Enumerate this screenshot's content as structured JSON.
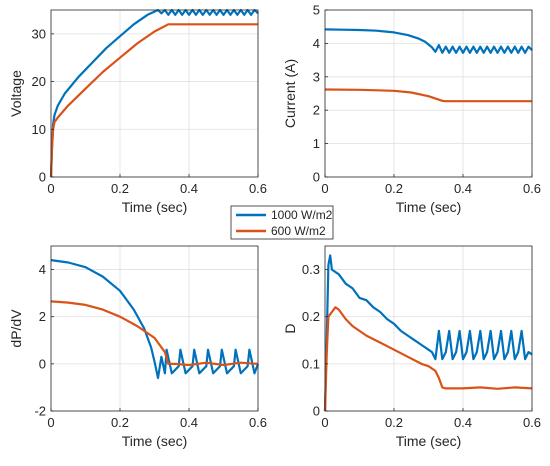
{
  "chart_data": [
    {
      "type": "line",
      "xlabel": "Time (sec)",
      "ylabel": "Voltage",
      "xlim": [
        0,
        0.6
      ],
      "ylim": [
        0,
        35
      ],
      "xticks": [
        {
          "v": 0,
          "label": "0"
        },
        {
          "v": 0.2,
          "label": "0.2"
        },
        {
          "v": 0.4,
          "label": "0.4"
        },
        {
          "v": 0.6,
          "label": "0.6"
        }
      ],
      "yticks": [
        {
          "v": 0,
          "label": "0"
        },
        {
          "v": 10,
          "label": "10"
        },
        {
          "v": 20,
          "label": "20"
        },
        {
          "v": 30,
          "label": "30"
        }
      ],
      "grid": true,
      "series": [
        {
          "name": "1000 W/m2",
          "x": [
            0,
            0.003,
            0.006,
            0.01,
            0.02,
            0.04,
            0.08,
            0.12,
            0.16,
            0.2,
            0.24,
            0.28,
            0.31,
            0.32,
            0.33,
            0.34,
            0.35,
            0.36,
            0.37,
            0.38,
            0.39,
            0.4,
            0.41,
            0.42,
            0.43,
            0.44,
            0.45,
            0.46,
            0.47,
            0.48,
            0.49,
            0.5,
            0.51,
            0.52,
            0.53,
            0.54,
            0.55,
            0.56,
            0.57,
            0.58,
            0.59,
            0.6
          ],
          "y": [
            0,
            6,
            11,
            13,
            15,
            17.5,
            21,
            24,
            27,
            29.5,
            32,
            34,
            35,
            34.3,
            35,
            34,
            35,
            34,
            35,
            34,
            35,
            34,
            35,
            34,
            35,
            34,
            35,
            34,
            35,
            34,
            35,
            34,
            35,
            34,
            35,
            34,
            35,
            34,
            35,
            34,
            35,
            34.3
          ]
        },
        {
          "name": "600 W/m2",
          "x": [
            0,
            0.003,
            0.006,
            0.01,
            0.02,
            0.05,
            0.1,
            0.15,
            0.2,
            0.25,
            0.3,
            0.34,
            0.35,
            0.4,
            0.5,
            0.6
          ],
          "y": [
            0,
            6,
            10,
            11.5,
            12.5,
            15,
            18.5,
            22,
            25,
            28,
            30.5,
            32,
            32,
            32,
            32,
            32
          ]
        }
      ]
    },
    {
      "type": "line",
      "xlabel": "Time (sec)",
      "ylabel": "Current (A)",
      "xlim": [
        0,
        0.6
      ],
      "ylim": [
        0,
        5
      ],
      "xticks": [
        {
          "v": 0,
          "label": "0"
        },
        {
          "v": 0.2,
          "label": "0.2"
        },
        {
          "v": 0.4,
          "label": "0.4"
        },
        {
          "v": 0.6,
          "label": "0.6"
        }
      ],
      "yticks": [
        {
          "v": 0,
          "label": "0"
        },
        {
          "v": 1,
          "label": "1"
        },
        {
          "v": 2,
          "label": "2"
        },
        {
          "v": 3,
          "label": "3"
        },
        {
          "v": 4,
          "label": "4"
        },
        {
          "v": 5,
          "label": "5"
        }
      ],
      "grid": true,
      "series": [
        {
          "name": "1000 W/m2",
          "x": [
            0,
            0.05,
            0.1,
            0.15,
            0.2,
            0.24,
            0.27,
            0.29,
            0.31,
            0.32,
            0.33,
            0.34,
            0.35,
            0.36,
            0.37,
            0.38,
            0.39,
            0.4,
            0.41,
            0.42,
            0.43,
            0.44,
            0.45,
            0.46,
            0.47,
            0.48,
            0.49,
            0.5,
            0.51,
            0.52,
            0.53,
            0.54,
            0.55,
            0.56,
            0.57,
            0.58,
            0.59,
            0.6
          ],
          "y": [
            4.42,
            4.41,
            4.4,
            4.38,
            4.33,
            4.25,
            4.15,
            4.05,
            3.88,
            3.75,
            3.95,
            3.72,
            3.9,
            3.72,
            3.9,
            3.72,
            3.9,
            3.72,
            3.9,
            3.72,
            3.9,
            3.72,
            3.9,
            3.72,
            3.9,
            3.72,
            3.9,
            3.72,
            3.9,
            3.72,
            3.9,
            3.72,
            3.9,
            3.72,
            3.9,
            3.72,
            3.9,
            3.8
          ]
        },
        {
          "name": "600 W/m2",
          "x": [
            0,
            0.1,
            0.2,
            0.25,
            0.3,
            0.34,
            0.35,
            0.4,
            0.5,
            0.6
          ],
          "y": [
            2.62,
            2.61,
            2.58,
            2.53,
            2.42,
            2.28,
            2.27,
            2.27,
            2.27,
            2.27
          ]
        }
      ]
    },
    {
      "type": "line",
      "xlabel": "Time (sec)",
      "ylabel": "dP/dV",
      "xlim": [
        0,
        0.6
      ],
      "ylim": [
        -2,
        5
      ],
      "xticks": [
        {
          "v": 0,
          "label": "0"
        },
        {
          "v": 0.2,
          "label": "0.2"
        },
        {
          "v": 0.4,
          "label": "0.4"
        },
        {
          "v": 0.6,
          "label": "0.6"
        }
      ],
      "yticks": [
        {
          "v": -2,
          "label": "-2"
        },
        {
          "v": 0,
          "label": "0"
        },
        {
          "v": 2,
          "label": "2"
        },
        {
          "v": 4,
          "label": "4"
        }
      ],
      "grid": true,
      "series": [
        {
          "name": "1000 W/m2",
          "x": [
            0,
            0.05,
            0.1,
            0.15,
            0.2,
            0.24,
            0.27,
            0.29,
            0.3,
            0.31,
            0.32,
            0.33,
            0.335,
            0.35,
            0.37,
            0.375,
            0.39,
            0.41,
            0.415,
            0.43,
            0.45,
            0.455,
            0.47,
            0.49,
            0.495,
            0.51,
            0.53,
            0.535,
            0.55,
            0.57,
            0.575,
            0.59,
            0.6
          ],
          "y": [
            4.4,
            4.3,
            4.1,
            3.7,
            3.1,
            2.3,
            1.5,
            0.7,
            0.1,
            -0.6,
            0.3,
            -0.4,
            0.6,
            -0.4,
            -0.1,
            0.6,
            -0.4,
            -0.1,
            0.6,
            -0.4,
            -0.1,
            0.6,
            -0.4,
            -0.1,
            0.6,
            -0.4,
            -0.1,
            0.6,
            -0.4,
            -0.1,
            0.6,
            -0.4,
            0
          ]
        },
        {
          "name": "600 W/m2",
          "x": [
            0,
            0.05,
            0.1,
            0.15,
            0.2,
            0.25,
            0.3,
            0.33,
            0.34,
            0.36,
            0.4,
            0.45,
            0.5,
            0.55,
            0.6
          ],
          "y": [
            2.65,
            2.6,
            2.5,
            2.3,
            2.0,
            1.6,
            1.1,
            0.5,
            0.0,
            0.0,
            -0.05,
            0.05,
            -0.05,
            0.05,
            0
          ]
        }
      ]
    },
    {
      "type": "line",
      "xlabel": "Time (sec)",
      "ylabel": "D",
      "xlim": [
        0,
        0.6
      ],
      "ylim": [
        0,
        0.35
      ],
      "xticks": [
        {
          "v": 0,
          "label": "0"
        },
        {
          "v": 0.2,
          "label": "0.2"
        },
        {
          "v": 0.4,
          "label": "0.4"
        },
        {
          "v": 0.6,
          "label": "0.6"
        }
      ],
      "yticks": [
        {
          "v": 0,
          "label": "0"
        },
        {
          "v": 0.1,
          "label": "0.1"
        },
        {
          "v": 0.2,
          "label": "0.2"
        },
        {
          "v": 0.3,
          "label": "0.3"
        }
      ],
      "grid": true,
      "series": [
        {
          "name": "1000 W/m2",
          "x": [
            0,
            0.005,
            0.01,
            0.015,
            0.02,
            0.04,
            0.06,
            0.08,
            0.1,
            0.12,
            0.14,
            0.16,
            0.18,
            0.2,
            0.22,
            0.24,
            0.26,
            0.28,
            0.3,
            0.31,
            0.32,
            0.33,
            0.34,
            0.35,
            0.36,
            0.37,
            0.38,
            0.39,
            0.4,
            0.41,
            0.42,
            0.43,
            0.44,
            0.45,
            0.46,
            0.47,
            0.48,
            0.49,
            0.5,
            0.51,
            0.52,
            0.53,
            0.54,
            0.55,
            0.56,
            0.57,
            0.58,
            0.59,
            0.6
          ],
          "y": [
            0,
            0.15,
            0.31,
            0.33,
            0.3,
            0.29,
            0.27,
            0.26,
            0.24,
            0.235,
            0.22,
            0.21,
            0.195,
            0.185,
            0.17,
            0.16,
            0.15,
            0.14,
            0.13,
            0.125,
            0.11,
            0.17,
            0.11,
            0.125,
            0.17,
            0.11,
            0.125,
            0.17,
            0.11,
            0.125,
            0.17,
            0.11,
            0.125,
            0.17,
            0.11,
            0.125,
            0.17,
            0.11,
            0.125,
            0.17,
            0.11,
            0.125,
            0.17,
            0.11,
            0.125,
            0.17,
            0.11,
            0.125,
            0.12
          ]
        },
        {
          "name": "600 W/m2",
          "x": [
            0,
            0.005,
            0.01,
            0.02,
            0.03,
            0.04,
            0.06,
            0.08,
            0.1,
            0.12,
            0.16,
            0.2,
            0.24,
            0.28,
            0.3,
            0.32,
            0.33,
            0.34,
            0.35,
            0.4,
            0.45,
            0.5,
            0.55,
            0.6
          ],
          "y": [
            0,
            0.12,
            0.2,
            0.21,
            0.22,
            0.215,
            0.195,
            0.18,
            0.17,
            0.16,
            0.145,
            0.13,
            0.115,
            0.1,
            0.095,
            0.085,
            0.07,
            0.05,
            0.048,
            0.048,
            0.05,
            0.047,
            0.05,
            0.048
          ]
        }
      ]
    }
  ],
  "legend": {
    "placement": "center",
    "entries": [
      {
        "label": "1000 W/m2",
        "color": "#0072BD"
      },
      {
        "label": "600 W/m2",
        "color": "#D95319"
      }
    ]
  },
  "colors": {
    "series1": "#0072BD",
    "series2": "#D95319",
    "grid": "#dfdfdf",
    "axis": "#262626"
  }
}
